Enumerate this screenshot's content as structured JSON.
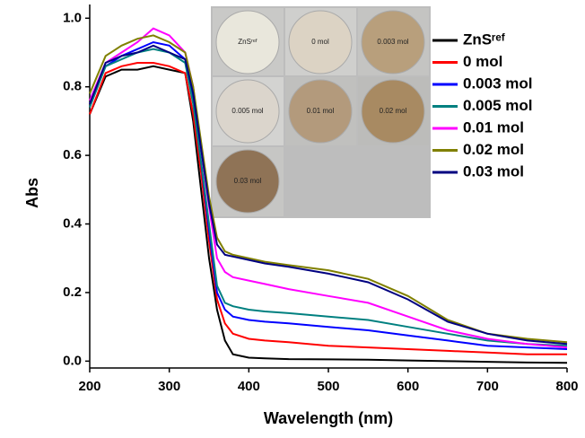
{
  "chart_data": {
    "type": "line",
    "xlabel": "Wavelength (nm)",
    "ylabel": "Abs",
    "x": [
      200,
      220,
      240,
      260,
      280,
      300,
      320,
      330,
      340,
      350,
      360,
      370,
      380,
      400,
      420,
      450,
      500,
      550,
      600,
      650,
      700,
      750,
      800
    ],
    "series": [
      {
        "name": "ZnSʳᵉᶠ",
        "color": "#000000",
        "values": [
          0.72,
          0.83,
          0.85,
          0.85,
          0.86,
          0.85,
          0.84,
          0.7,
          0.5,
          0.3,
          0.15,
          0.06,
          0.02,
          0.01,
          0.008,
          0.006,
          0.005,
          0.004,
          0.002,
          0.0,
          -0.002,
          -0.004,
          -0.005
        ]
      },
      {
        "name": "0 mol",
        "color": "#ff0000",
        "values": [
          0.72,
          0.84,
          0.86,
          0.87,
          0.87,
          0.86,
          0.84,
          0.72,
          0.55,
          0.35,
          0.18,
          0.11,
          0.08,
          0.065,
          0.06,
          0.055,
          0.045,
          0.04,
          0.035,
          0.03,
          0.025,
          0.02,
          0.02
        ]
      },
      {
        "name": "0.003 mol",
        "color": "#0000ff",
        "values": [
          0.75,
          0.86,
          0.89,
          0.91,
          0.93,
          0.92,
          0.88,
          0.76,
          0.58,
          0.38,
          0.2,
          0.15,
          0.13,
          0.12,
          0.115,
          0.11,
          0.1,
          0.09,
          0.075,
          0.06,
          0.045,
          0.04,
          0.035
        ]
      },
      {
        "name": "0.005 mol",
        "color": "#008080",
        "values": [
          0.74,
          0.86,
          0.88,
          0.9,
          0.91,
          0.9,
          0.87,
          0.75,
          0.58,
          0.4,
          0.22,
          0.17,
          0.16,
          0.15,
          0.145,
          0.14,
          0.13,
          0.12,
          0.1,
          0.08,
          0.06,
          0.05,
          0.045
        ]
      },
      {
        "name": "0.01 mol",
        "color": "#ff00ff",
        "values": [
          0.76,
          0.87,
          0.9,
          0.93,
          0.97,
          0.95,
          0.9,
          0.8,
          0.62,
          0.45,
          0.3,
          0.26,
          0.245,
          0.235,
          0.225,
          0.21,
          0.19,
          0.17,
          0.13,
          0.09,
          0.065,
          0.05,
          0.04
        ]
      },
      {
        "name": "0.02 mol",
        "color": "#808000",
        "values": [
          0.78,
          0.89,
          0.92,
          0.94,
          0.95,
          0.93,
          0.9,
          0.8,
          0.64,
          0.48,
          0.36,
          0.32,
          0.31,
          0.3,
          0.29,
          0.28,
          0.265,
          0.24,
          0.19,
          0.12,
          0.08,
          0.065,
          0.055
        ]
      },
      {
        "name": "0.03 mol",
        "color": "#000080",
        "values": [
          0.75,
          0.87,
          0.89,
          0.9,
          0.92,
          0.9,
          0.88,
          0.78,
          0.62,
          0.46,
          0.34,
          0.31,
          0.305,
          0.295,
          0.285,
          0.275,
          0.255,
          0.23,
          0.18,
          0.115,
          0.08,
          0.06,
          0.05
        ]
      }
    ],
    "xlim": [
      200,
      800
    ],
    "xticks": [
      200,
      300,
      400,
      500,
      600,
      700,
      800
    ],
    "ylim": [
      -0.02,
      1.04
    ],
    "yticks": [
      {
        "value": 0,
        "label": "0.0"
      },
      0.2,
      0.4,
      0.6,
      0.8,
      {
        "value": 1,
        "label": "1.0"
      }
    ],
    "grid": false,
    "inset_labels": [
      "ZnSʳᵉᶠ",
      "0 mol",
      "0.003 mol",
      "0.005 mol",
      "0.01 mol",
      "0.02 mol",
      "0.03 mol"
    ]
  }
}
